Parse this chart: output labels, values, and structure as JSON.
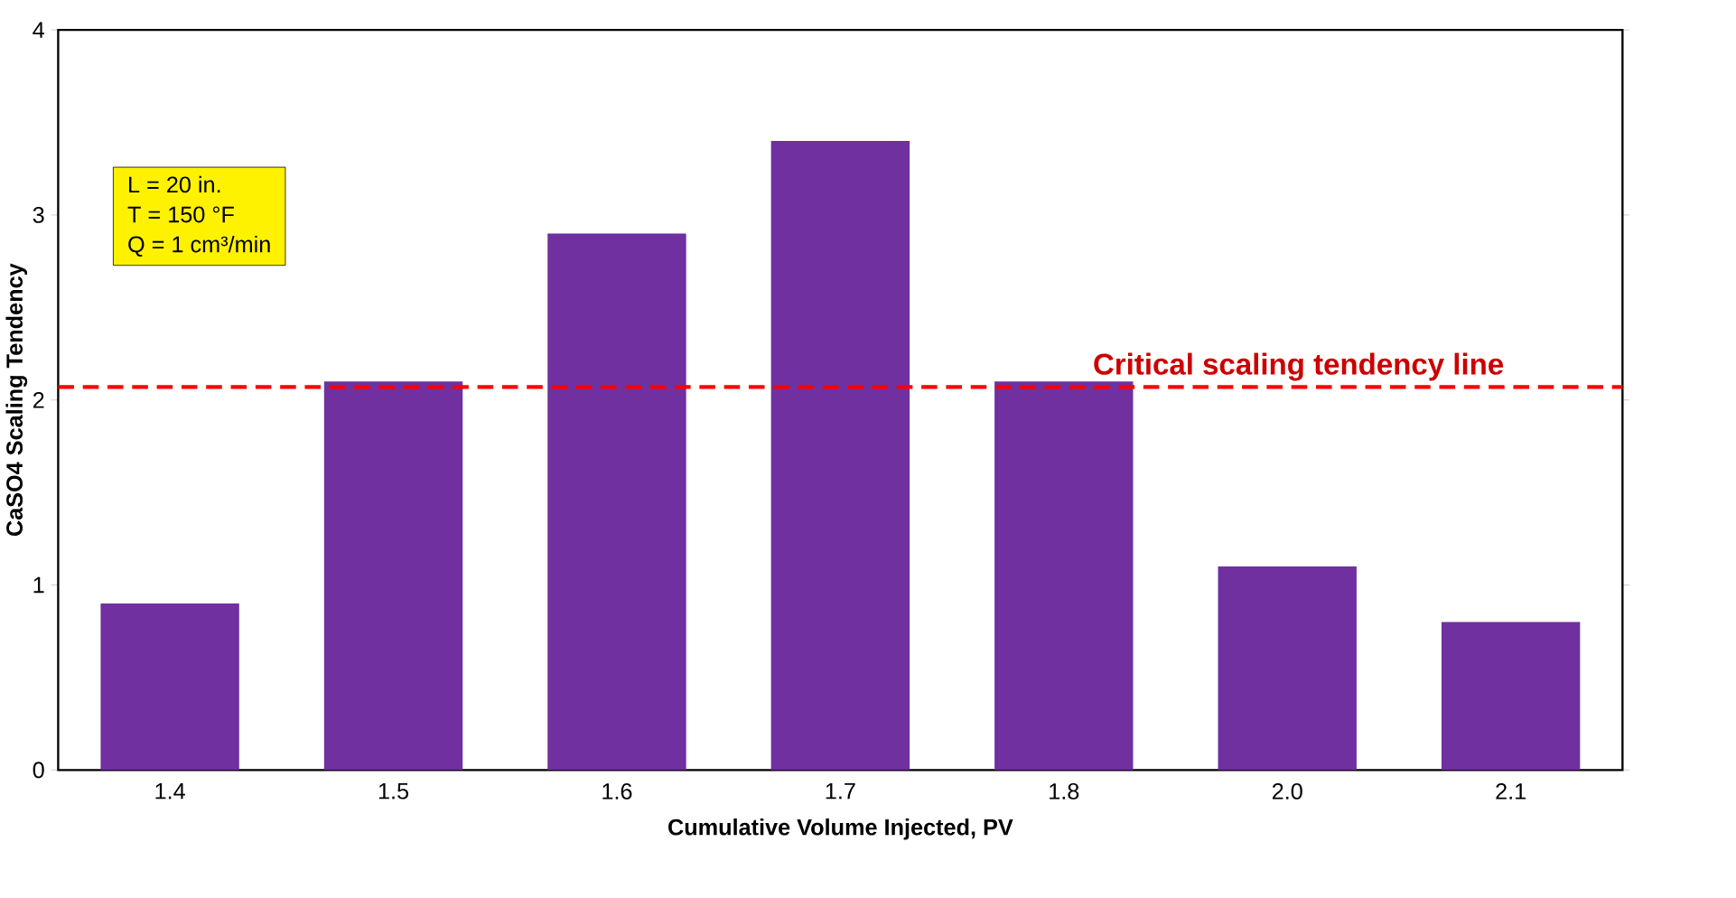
{
  "chart_data": {
    "type": "bar",
    "xlabel": "Cumulative Volume Injected, PV",
    "ylabel": "CaSO4 Scaling Tendency",
    "categories": [
      "1.4",
      "1.5",
      "1.6",
      "1.7",
      "1.8",
      "2.0",
      "2.1"
    ],
    "values": [
      0.9,
      2.1,
      2.9,
      3.4,
      2.1,
      1.1,
      0.8
    ],
    "color": "#7030a0",
    "ylim": [
      0,
      4
    ],
    "yticks": [
      0,
      1,
      2,
      3,
      4
    ],
    "grid": false,
    "ref_lines": [
      {
        "axis": "y",
        "value": 2.07,
        "label": "Critical scaling tendency line",
        "color": "#ff0000",
        "line_style": "dashed"
      }
    ],
    "annotations": [
      "L = 20 in.",
      "T = 150 °F",
      "Q = 1 cm³/min"
    ]
  }
}
